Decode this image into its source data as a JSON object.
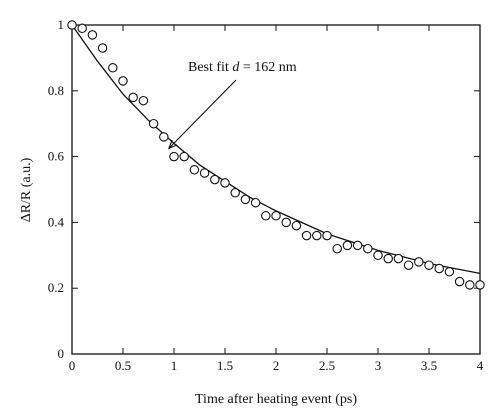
{
  "chart_data": {
    "type": "scatter",
    "xlabel": "Time after heating event (ps)",
    "ylabel": "ΔR/R (a.u.)",
    "xlim": [
      0,
      4
    ],
    "ylim": [
      0,
      1
    ],
    "x_ticks": [
      0,
      0.5,
      1,
      1.5,
      2,
      2.5,
      3,
      3.5,
      4
    ],
    "x_tick_labels": [
      "0",
      "0.5",
      "1",
      "1.5",
      "2",
      "2.5",
      "3",
      "3.5",
      "4"
    ],
    "y_ticks": [
      0,
      0.2,
      0.4,
      0.6,
      0.8,
      1
    ],
    "y_tick_labels": [
      "0",
      "0.2",
      "0.4",
      "0.6",
      "0.8",
      "1"
    ],
    "grid": false,
    "series": [
      {
        "style": "open-circle markers",
        "x": [
          0.0,
          0.1,
          0.2,
          0.3,
          0.4,
          0.5,
          0.6,
          0.7,
          0.8,
          0.9,
          1.0,
          1.1,
          1.2,
          1.3,
          1.4,
          1.5,
          1.6,
          1.7,
          1.8,
          1.9,
          2.0,
          2.1,
          2.2,
          2.3,
          2.4,
          2.5,
          2.6,
          2.7,
          2.8,
          2.9,
          3.0,
          3.1,
          3.2,
          3.3,
          3.4,
          3.5,
          3.6,
          3.7,
          3.8,
          3.9,
          4.0
        ],
        "y": [
          1.0,
          0.99,
          0.97,
          0.93,
          0.87,
          0.83,
          0.78,
          0.77,
          0.7,
          0.66,
          0.6,
          0.6,
          0.56,
          0.55,
          0.53,
          0.52,
          0.49,
          0.47,
          0.46,
          0.42,
          0.42,
          0.4,
          0.39,
          0.36,
          0.36,
          0.36,
          0.32,
          0.33,
          0.33,
          0.32,
          0.3,
          0.29,
          0.29,
          0.27,
          0.28,
          0.27,
          0.26,
          0.25,
          0.22,
          0.21,
          0.21
        ]
      },
      {
        "style": "solid line",
        "x": [
          0.0,
          0.25,
          0.5,
          0.75,
          1.0,
          1.25,
          1.5,
          1.75,
          2.0,
          2.25,
          2.5,
          2.75,
          3.0,
          3.25,
          3.5,
          3.75,
          4.0
        ],
        "y": [
          1.0,
          0.89,
          0.79,
          0.71,
          0.64,
          0.575,
          0.525,
          0.475,
          0.435,
          0.4,
          0.365,
          0.34,
          0.315,
          0.295,
          0.275,
          0.26,
          0.245
        ]
      }
    ],
    "annotations": [
      {
        "text_prefix": "Best fit ",
        "text_var": "d",
        "text_suffix": " = 162 nm",
        "arrow_target": [
          0.95,
          0.625
        ]
      }
    ]
  }
}
